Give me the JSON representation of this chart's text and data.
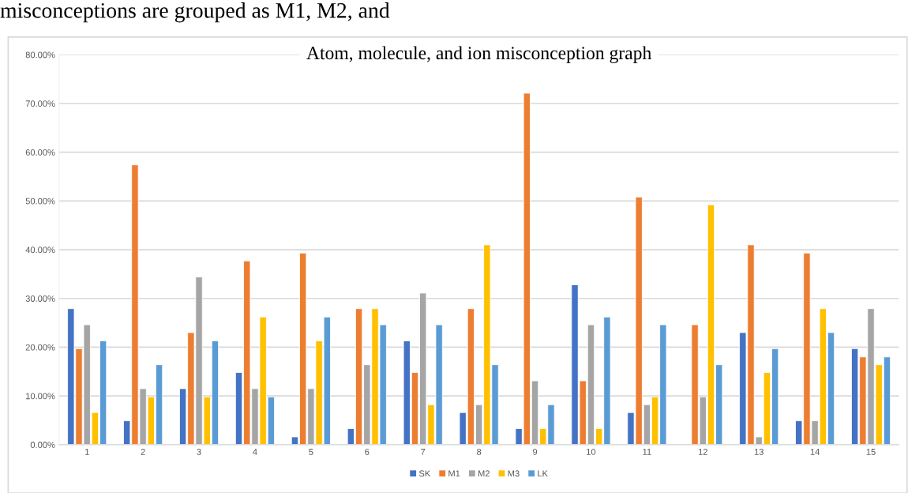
{
  "chart_data": {
    "type": "bar",
    "title": "Atom, molecule, and ion misconception graph",
    "annotations": [
      "misconceptions are grouped as M1, M2, and"
    ],
    "categories": [
      "1",
      "2",
      "3",
      "4",
      "5",
      "6",
      "7",
      "8",
      "9",
      "10",
      "11",
      "12",
      "13",
      "14",
      "15"
    ],
    "series": [
      {
        "name": "SK",
        "color": "#4472c4",
        "values": [
          27.9,
          4.9,
          11.5,
          14.8,
          1.6,
          3.3,
          21.3,
          6.6,
          3.3,
          32.8,
          6.6,
          null,
          23.0,
          4.9,
          19.7
        ]
      },
      {
        "name": "M1",
        "color": "#ed7d31",
        "values": [
          19.7,
          57.4,
          23.0,
          37.7,
          39.3,
          27.9,
          14.8,
          27.9,
          72.1,
          13.1,
          50.8,
          24.6,
          41.0,
          39.3,
          18.0
        ]
      },
      {
        "name": "M2",
        "color": "#a5a5a5",
        "values": [
          24.6,
          11.5,
          34.4,
          11.5,
          11.5,
          16.4,
          31.1,
          8.2,
          13.1,
          24.6,
          8.2,
          9.8,
          1.6,
          4.9,
          27.9
        ]
      },
      {
        "name": "M3",
        "color": "#ffc000",
        "values": [
          6.6,
          9.8,
          9.8,
          26.2,
          21.3,
          27.9,
          8.2,
          41.0,
          3.3,
          3.3,
          9.8,
          49.2,
          14.8,
          27.9,
          16.4
        ]
      },
      {
        "name": "LK",
        "color": "#5b9bd5",
        "values": [
          21.3,
          16.4,
          21.3,
          9.8,
          26.2,
          24.6,
          24.6,
          16.4,
          8.2,
          26.2,
          24.6,
          16.4,
          19.7,
          23.0,
          18.0
        ]
      }
    ],
    "ylim": [
      0,
      80
    ],
    "yticks": [
      {
        "value": 0,
        "label": "0.00%"
      },
      {
        "value": 10,
        "label": "10.00%"
      },
      {
        "value": 20,
        "label": "20.00%"
      },
      {
        "value": 30,
        "label": "30.00%"
      },
      {
        "value": 40,
        "label": "40.00%"
      },
      {
        "value": 50,
        "label": "50.00%"
      },
      {
        "value": 60,
        "label": "60.00%"
      },
      {
        "value": 70,
        "label": "70.00%"
      },
      {
        "value": 80,
        "label": "80.00%"
      }
    ],
    "grid": "y",
    "legend": "bottom"
  }
}
